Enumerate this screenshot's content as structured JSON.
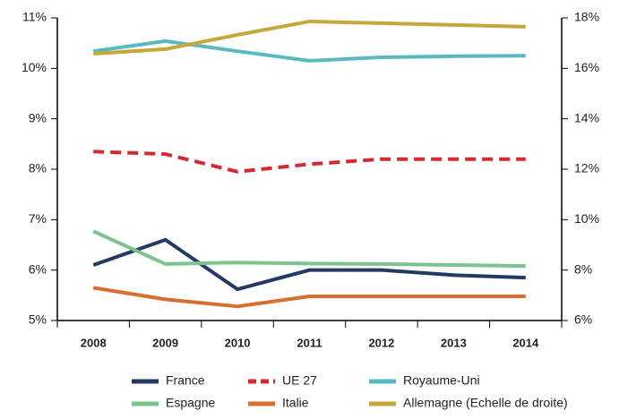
{
  "chart_data": {
    "type": "line",
    "categories": [
      "2008",
      "2009",
      "2010",
      "2011",
      "2012",
      "2013",
      "2014"
    ],
    "series": [
      {
        "name": "France",
        "color": "#253a63",
        "values": [
          6.1,
          6.6,
          5.62,
          6.0,
          6.0,
          5.9,
          5.85
        ]
      },
      {
        "name": "UE 27",
        "color": "#d7282f",
        "dashed": true,
        "values": [
          8.35,
          8.3,
          7.95,
          8.1,
          8.2,
          8.2,
          8.2
        ]
      },
      {
        "name": "Royaume-Uni",
        "color": "#5ab8c0",
        "values": [
          10.34,
          10.54,
          10.34,
          10.15,
          10.22,
          10.24,
          10.25
        ]
      },
      {
        "name": "Espagne",
        "color": "#7cc38f",
        "values": [
          6.77,
          6.12,
          6.15,
          6.13,
          6.12,
          6.1,
          6.08
        ]
      },
      {
        "name": "Italie",
        "color": "#d66f30",
        "values": [
          5.65,
          5.42,
          5.28,
          5.48,
          5.48,
          5.48,
          5.48
        ]
      },
      {
        "name": "Allemagne (Echelle de droite)",
        "color": "#c4a83a",
        "axis": "y2",
        "values": [
          16.58,
          16.76,
          17.33,
          17.86,
          17.79,
          17.72,
          17.65
        ]
      }
    ],
    "ylim": [
      5,
      11
    ],
    "yticks": [
      {
        "value": 5,
        "label": "5%"
      },
      {
        "value": 6,
        "label": "6%"
      },
      {
        "value": 7,
        "label": "7%"
      },
      {
        "value": 8,
        "label": "8%"
      },
      {
        "value": 9,
        "label": "9%"
      },
      {
        "value": 10,
        "label": "10%"
      },
      {
        "value": 11,
        "label": "11%"
      }
    ],
    "y2lim": [
      6,
      18
    ],
    "y2ticks": [
      {
        "value": 6,
        "label": "6%"
      },
      {
        "value": 8,
        "label": "8%"
      },
      {
        "value": 10,
        "label": "10%"
      },
      {
        "value": 12,
        "label": "12%"
      },
      {
        "value": 14,
        "label": "14%"
      },
      {
        "value": 16,
        "label": "16%"
      },
      {
        "value": 18,
        "label": "18%"
      }
    ],
    "legend": "bottom"
  }
}
